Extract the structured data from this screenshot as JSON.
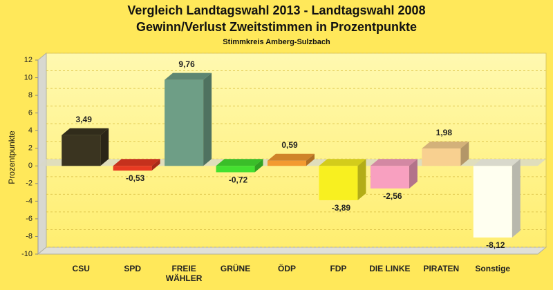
{
  "chart_data": {
    "type": "bar3d",
    "title": "Vergleich Landtagswahl 2013 - Landtagswahl 2008",
    "subtitle": "Gewinn/Verlust Zweitstimmen in Prozentpunkte",
    "note": "Stimmkreis Amberg-Sulzbach",
    "y_label": "Prozentpunkte",
    "categories": [
      "CSU",
      "SPD",
      "FREIE WÄHLER",
      "GRÜNE",
      "ÖDP",
      "FDP",
      "DIE LINKE",
      "PIRATEN",
      "Sonstige"
    ],
    "values": [
      3.49,
      -0.53,
      9.76,
      -0.72,
      0.59,
      -3.89,
      -2.56,
      1.98,
      -8.12
    ],
    "value_labels": [
      "3,49",
      "-0,53",
      "9,76",
      "-0,72",
      "0,59",
      "-3,89",
      "-2,56",
      "1,98",
      "-8,12"
    ],
    "colors": [
      "#3a3420",
      "#e83a22",
      "#6e9e86",
      "#44e030",
      "#f39a30",
      "#f8f020",
      "#f8a0c0",
      "#f8d090",
      "#fffff0"
    ],
    "ylim": [
      -10,
      12
    ],
    "yticks": [
      -10,
      -8,
      -6,
      -4,
      -2,
      0,
      2,
      4,
      6,
      8,
      10,
      12
    ],
    "grid": true
  }
}
